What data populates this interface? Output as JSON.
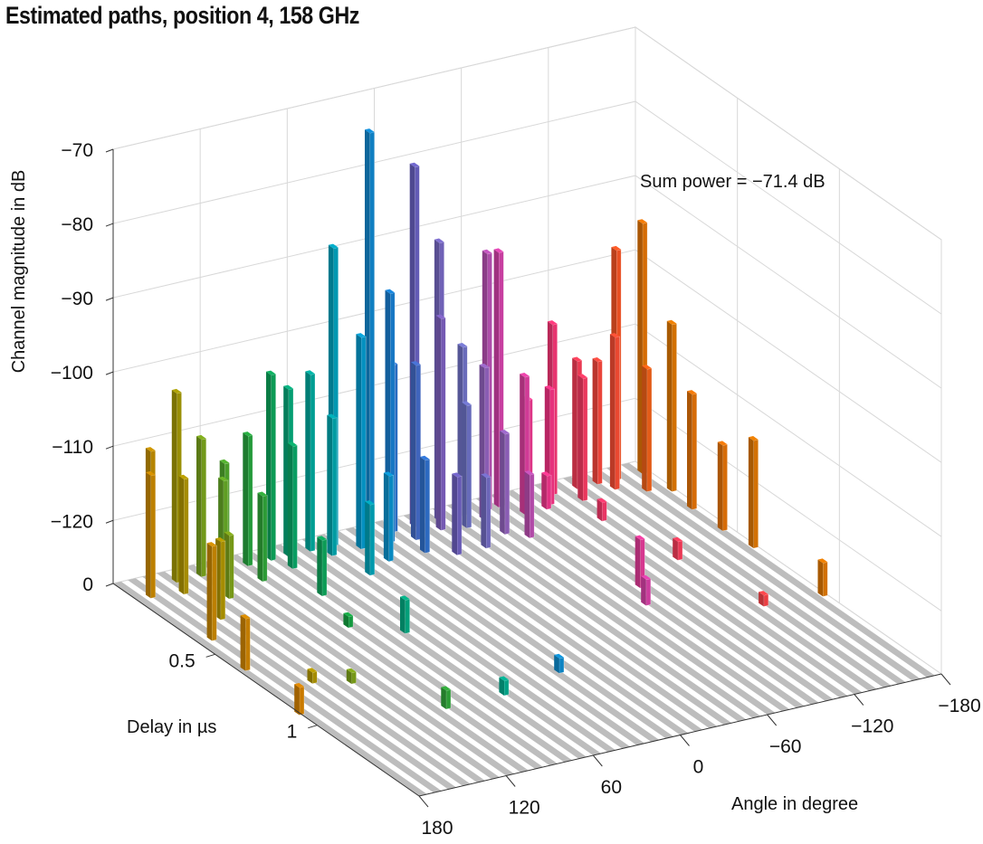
{
  "chart_data": {
    "type": "bar3d",
    "title": "Estimated paths, position 4, 158 GHz",
    "annotation": "Sum power = −71.4 dB",
    "xlabel": "Angle in degree",
    "ylabel": "Delay in µs",
    "zlabel": "Channel magnitude in dB",
    "angle_ticks": [
      "180",
      "120",
      "60",
      "0",
      "−60",
      "−120",
      "−180"
    ],
    "angle_tick_values": [
      180,
      120,
      60,
      0,
      -60,
      -120,
      -180
    ],
    "delay_ticks": [
      "0.5",
      "1"
    ],
    "delay_tick_values": [
      0.5,
      1
    ],
    "z_ticks": [
      "0",
      "−120",
      "−110",
      "−100",
      "−90",
      "−80",
      "−70"
    ],
    "z_tick_values": [
      -128.5,
      -120,
      -110,
      -100,
      -90,
      -80,
      -70
    ],
    "angle_range": [
      180,
      -180
    ],
    "delay_range": [
      0,
      1.5
    ],
    "z_range": [
      -128.5,
      -70
    ],
    "grid": true,
    "color_by_angle": [
      {
        "angle": 180,
        "color": "#c97a00"
      },
      {
        "angle": 150,
        "color": "#a58c00"
      },
      {
        "angle": 120,
        "color": "#5f9e24"
      },
      {
        "angle": 90,
        "color": "#14993f"
      },
      {
        "angle": 60,
        "color": "#00a085"
      },
      {
        "angle": 30,
        "color": "#0096bf"
      },
      {
        "angle": 0,
        "color": "#1a6fc4"
      },
      {
        "angle": -25,
        "color": "#7a55b0"
      },
      {
        "angle": -50,
        "color": "#6270bd"
      },
      {
        "angle": -75,
        "color": "#c540a3"
      },
      {
        "angle": -105,
        "color": "#e6307c"
      },
      {
        "angle": -135,
        "color": "#ea3a4c"
      },
      {
        "angle": -160,
        "color": "#e8521f"
      },
      {
        "angle": -180,
        "color": "#d07400"
      }
    ],
    "columns": [
      "angle_deg",
      "delay_us",
      "magnitude_db"
    ],
    "bars": [
      [
        163,
        0.05,
        -110
      ],
      [
        145,
        0.05,
        -103
      ],
      [
        128,
        0.05,
        -110
      ],
      [
        112,
        0.05,
        -114
      ],
      [
        96,
        0.05,
        -111
      ],
      [
        80,
        0.05,
        -103.5
      ],
      [
        68,
        0.05,
        -106
      ],
      [
        53,
        0.05,
        -104.7
      ],
      [
        37,
        0.05,
        -88.4
      ],
      [
        12,
        0.05,
        -74
      ],
      [
        -4,
        0.05,
        -106
      ],
      [
        -19,
        0.05,
        -80
      ],
      [
        -36,
        0.05,
        -91
      ],
      [
        -52,
        0.05,
        -105.8
      ],
      [
        -69,
        0.05,
        -94
      ],
      [
        -77,
        0.05,
        -94.2
      ],
      [
        -97,
        0.05,
        -115
      ],
      [
        -114,
        0.05,
        -105.6
      ],
      [
        -131,
        0.05,
        -111.3
      ],
      [
        -145,
        0.05,
        -112
      ],
      [
        -158,
        0.05,
        -97.6
      ],
      [
        -176,
        0.05,
        -94.8
      ],
      [
        -178,
        0.18,
        -106
      ],
      [
        -178,
        0.58,
        -114
      ],
      [
        -178,
        0.92,
        -124
      ],
      [
        180,
        0.9,
        -124.8
      ],
      [
        175,
        0.6,
        -121.5
      ],
      [
        170,
        0.4,
        -115.8
      ],
      [
        170,
        0.1,
        -112
      ],
      [
        150,
        0.12,
        -113
      ],
      [
        120,
        0.1,
        -115
      ],
      [
        100,
        0.15,
        -117
      ],
      [
        75,
        0.12,
        -112
      ],
      [
        45,
        0.1,
        -110
      ],
      [
        25,
        0.1,
        -100
      ],
      [
        5,
        0.1,
        -95
      ],
      [
        -10,
        0.12,
        -105
      ],
      [
        -30,
        0.1,
        -100
      ],
      [
        -45,
        0.12,
        -112
      ],
      [
        -60,
        0.1,
        -108
      ],
      [
        -85,
        0.12,
        -110
      ],
      [
        -105,
        0.1,
        -113
      ],
      [
        -125,
        0.12,
        -112
      ],
      [
        -150,
        0.1,
        -108
      ],
      [
        -165,
        0.15,
        -112
      ],
      [
        -175,
        0.3,
        -113
      ],
      [
        -175,
        0.45,
        -117
      ],
      [
        150,
        0.3,
        -118
      ],
      [
        130,
        0.2,
        -120
      ],
      [
        80,
        0.3,
        -121
      ],
      [
        40,
        0.25,
        -119
      ],
      [
        20,
        0.2,
        -117
      ],
      [
        -5,
        0.2,
        -116
      ],
      [
        -20,
        0.25,
        -118
      ],
      [
        -70,
        0.25,
        -120
      ],
      [
        100,
        1.05,
        -126
      ],
      [
        60,
        1.05,
        -126.5
      ],
      [
        15,
        1.0,
        -126.5
      ],
      [
        -80,
        0.75,
        -125
      ],
      [
        -90,
        0.65,
        -122
      ],
      [
        -130,
        0.55,
        -126
      ],
      [
        -140,
        0.9,
        -127
      ],
      [
        65,
        0.6,
        -124
      ],
      [
        90,
        0.5,
        -127
      ],
      [
        -40,
        0.25,
        -119
      ],
      [
        -60,
        0.2,
        -115
      ],
      [
        -100,
        0.12,
        -124
      ],
      [
        -120,
        0.25,
        -126
      ],
      [
        150,
        0.75,
        -127
      ],
      [
        130,
        0.8,
        -127
      ]
    ]
  }
}
